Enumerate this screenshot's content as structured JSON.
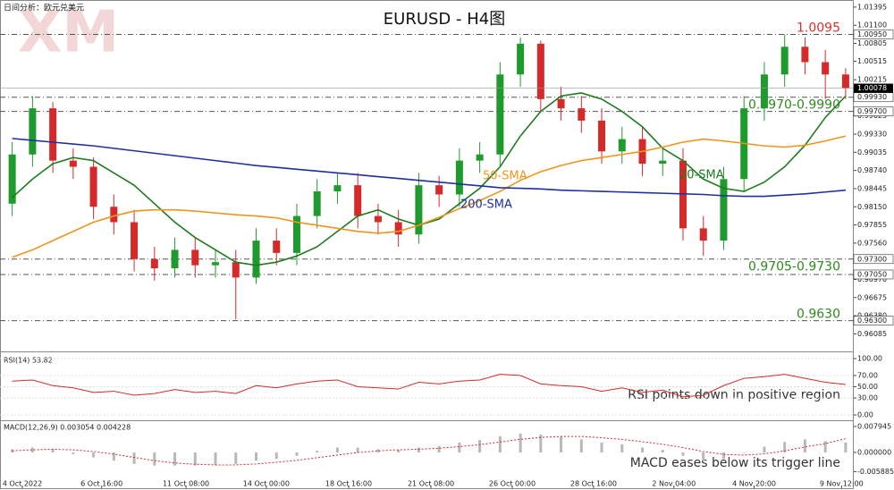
{
  "chart_data": [
    {
      "type": "candlestick",
      "title": "EURUSD - H4图",
      "subtitle": "日间分析：欧元兑美元",
      "watermark": "XM",
      "open": [
        0.982,
        0.99,
        0.9975,
        0.989,
        0.988,
        0.9815,
        0.979,
        0.973,
        0.9715,
        0.9745,
        0.972,
        0.9725,
        0.97,
        0.976,
        0.974,
        0.98,
        0.984,
        0.985,
        0.98,
        0.979,
        0.977,
        0.985,
        0.9835,
        0.989,
        0.99,
        1.003,
        1.008,
        0.999,
        0.9975,
        0.9955,
        0.9905,
        0.9925,
        0.9885,
        0.989,
        0.978,
        0.976,
        0.986,
        0.9975,
        1.003,
        1.0075,
        1.005,
        1.003
      ],
      "high": [
        0.992,
        0.9995,
        0.9985,
        0.991,
        0.9895,
        0.9835,
        0.981,
        0.975,
        0.9765,
        0.9765,
        0.9745,
        0.9745,
        0.978,
        0.978,
        0.982,
        0.986,
        0.987,
        0.987,
        0.982,
        0.981,
        0.987,
        0.9865,
        0.991,
        0.992,
        1.005,
        1.009,
        1.0085,
        1.001,
        0.9995,
        0.9975,
        0.9945,
        0.9945,
        0.991,
        0.991,
        0.98,
        0.988,
        0.9995,
        1.005,
        1.0095,
        1.009,
        1.007,
        1.004
      ],
      "low": [
        0.98,
        0.988,
        0.987,
        0.986,
        0.9795,
        0.977,
        0.971,
        0.9695,
        0.97,
        0.97,
        0.97,
        0.9632,
        0.969,
        0.972,
        0.972,
        0.978,
        0.982,
        0.978,
        0.977,
        0.975,
        0.9755,
        0.9815,
        0.9815,
        0.987,
        0.988,
        1.001,
        0.997,
        0.9955,
        0.9935,
        0.9885,
        0.9885,
        0.9865,
        0.9865,
        0.976,
        0.9735,
        0.9745,
        0.984,
        0.9955,
        1.001,
        1.003,
        0.999,
        0.999
      ],
      "close": [
        0.99,
        0.9975,
        0.989,
        0.988,
        0.9815,
        0.979,
        0.973,
        0.9715,
        0.9745,
        0.972,
        0.9725,
        0.97,
        0.976,
        0.974,
        0.98,
        0.984,
        0.985,
        0.98,
        0.979,
        0.977,
        0.985,
        0.9835,
        0.989,
        0.99,
        1.003,
        1.008,
        0.999,
        0.9975,
        0.9955,
        0.9905,
        0.9925,
        0.9885,
        0.989,
        0.978,
        0.976,
        0.986,
        0.9975,
        1.003,
        1.0075,
        1.005,
        1.003,
        1.00078
      ],
      "up_color": "#1f9a2c",
      "down_color": "#d42a2a",
      "series": [
        {
          "name": "20-SMA",
          "color": "#1e7b1e",
          "values": [
            0.983,
            0.986,
            0.9885,
            0.9895,
            0.989,
            0.987,
            0.985,
            0.982,
            0.979,
            0.9765,
            0.9745,
            0.9725,
            0.972,
            0.9725,
            0.9735,
            0.975,
            0.9775,
            0.98,
            0.981,
            0.9795,
            0.9785,
            0.9795,
            0.982,
            0.9845,
            0.988,
            0.993,
            0.997,
            0.9995,
            1.0,
            0.999,
            0.997,
            0.9945,
            0.991,
            0.989,
            0.986,
            0.9845,
            0.984,
            0.9855,
            0.988,
            0.9915,
            0.996,
            0.9995
          ]
        },
        {
          "name": "50-SMA",
          "color": "#f0951c",
          "values": [
            0.9733,
            0.9745,
            0.976,
            0.9775,
            0.979,
            0.98,
            0.9808,
            0.981,
            0.981,
            0.9808,
            0.9805,
            0.9802,
            0.98,
            0.9797,
            0.979,
            0.9785,
            0.978,
            0.9775,
            0.9772,
            0.9775,
            0.9785,
            0.9798,
            0.9812,
            0.9825,
            0.984,
            0.9858,
            0.9872,
            0.9882,
            0.989,
            0.9895,
            0.99,
            0.9905,
            0.9912,
            0.992,
            0.9925,
            0.9922,
            0.9918,
            0.9914,
            0.9912,
            0.9915,
            0.9922,
            0.993
          ]
        },
        {
          "name": "200-SMA",
          "color": "#1f2fa0",
          "values": [
            0.9926,
            0.9923,
            0.992,
            0.9917,
            0.9914,
            0.991,
            0.9906,
            0.9902,
            0.9898,
            0.9894,
            0.989,
            0.9886,
            0.9882,
            0.9879,
            0.9876,
            0.9873,
            0.987,
            0.9867,
            0.9864,
            0.9861,
            0.9858,
            0.9855,
            0.9852,
            0.9849,
            0.9846,
            0.9845,
            0.9844,
            0.9842,
            0.9841,
            0.984,
            0.9839,
            0.9838,
            0.9837,
            0.9836,
            0.9835,
            0.9833,
            0.9832,
            0.9832,
            0.9834,
            0.9836,
            0.9839,
            0.9842
          ]
        }
      ],
      "xlim": [
        -0.6,
        41.4
      ],
      "ylim": [
        0.958,
        1.0151
      ],
      "yticks": [
        {
          "value": 1.01395,
          "label": "1.01395"
        },
        {
          "value": 1.011,
          "label": "1.01100"
        },
        {
          "value": 1.00805,
          "label": "1.00805"
        },
        {
          "value": 1.00515,
          "label": "1.00515"
        },
        {
          "value": 1.00215,
          "label": "1.00215"
        },
        {
          "value": 0.99625,
          "label": "0.99625"
        },
        {
          "value": 0.9933,
          "label": "0.99330"
        },
        {
          "value": 0.99035,
          "label": "0.99035"
        },
        {
          "value": 0.9874,
          "label": "0.98740"
        },
        {
          "value": 0.98445,
          "label": "0.98445"
        },
        {
          "value": 0.9815,
          "label": "0.98150"
        },
        {
          "value": 0.97855,
          "label": "0.97855"
        },
        {
          "value": 0.9756,
          "label": "0.97560"
        },
        {
          "value": 0.97265,
          "label": "0.97265"
        },
        {
          "value": 0.9697,
          "label": "0.96970"
        },
        {
          "value": 0.96675,
          "label": "0.96675"
        },
        {
          "value": 0.9638,
          "label": "0.96380"
        },
        {
          "value": 0.96085,
          "label": "0.96085"
        }
      ],
      "levels": [
        {
          "value": 1.0095,
          "label": "1.00950"
        },
        {
          "value": 0.9993,
          "label": "0.99930"
        },
        {
          "value": 0.997,
          "label": "0.99700"
        },
        {
          "value": 0.973,
          "label": "0.97300"
        },
        {
          "value": 0.9705,
          "label": "0.97050"
        },
        {
          "value": 0.963,
          "label": "0.96300"
        }
      ],
      "last_price": {
        "value": 1.00078,
        "label": "1.00078"
      },
      "annotations": [
        {
          "text": "1.0095",
          "values": [
            1.0095
          ],
          "color": "#e0302a"
        },
        {
          "text": "0.9970-0.9990",
          "values": [
            0.997,
            0.999
          ],
          "color": "#2e8a1e"
        },
        {
          "text": "0.9705-0.9730",
          "values": [
            0.9705,
            0.973
          ],
          "color": "#2e8a1e"
        },
        {
          "text": "0.9630",
          "values": [
            0.963
          ],
          "color": "#2e8a1e"
        }
      ]
    },
    {
      "type": "line",
      "label": "RSI(14) 53.82",
      "annotation": "RSI points down in positive region",
      "color": "#d42a2a",
      "values": [
        60,
        62,
        52,
        48,
        40,
        42,
        35,
        38,
        45,
        40,
        42,
        38,
        52,
        48,
        55,
        60,
        62,
        50,
        48,
        46,
        58,
        55,
        60,
        62,
        72,
        70,
        55,
        52,
        50,
        42,
        48,
        40,
        44,
        32,
        35,
        52,
        65,
        68,
        72,
        65,
        58,
        54
      ],
      "xlim": [
        -0.6,
        41.4
      ],
      "ylim": [
        -9.5,
        108
      ],
      "yticks": [
        {
          "value": 0,
          "label": "0.00"
        },
        {
          "value": 30,
          "label": "30.00"
        },
        {
          "value": 50,
          "label": "50.00"
        },
        {
          "value": 70,
          "label": "70.00"
        },
        {
          "value": 100,
          "label": "100.00"
        }
      ]
    },
    {
      "type": "macd",
      "label": "MACD(12,26,9) 0.003054 0.004228",
      "annotation": "MACD eases below its trigger line",
      "series": [
        {
          "name": "MACD",
          "color": "#b8b8b8",
          "values": [
            0.001,
            0.0015,
            0.001,
            -0.0005,
            -0.0015,
            -0.0025,
            -0.0035,
            -0.004,
            -0.004,
            -0.004,
            -0.0038,
            -0.0035,
            -0.0025,
            -0.002,
            -0.001,
            0.0005,
            0.0015,
            0.0015,
            0.001,
            0.0008,
            0.0015,
            0.002,
            0.003,
            0.0038,
            0.005,
            0.0058,
            0.0055,
            0.0048,
            0.004,
            0.003,
            0.0025,
            0.0015,
            0.0008,
            -0.001,
            -0.0025,
            -0.002,
            0,
            0.0018,
            0.0032,
            0.004,
            0.0035,
            0.003054
          ]
        },
        {
          "name": "Signal",
          "color": "#d42a2a",
          "values": [
            0.0005,
            0.0008,
            0.001,
            0.0008,
            0.0003,
            -0.0005,
            -0.0015,
            -0.0025,
            -0.0032,
            -0.0036,
            -0.0038,
            -0.0038,
            -0.0035,
            -0.003,
            -0.0024,
            -0.0016,
            -0.0008,
            0,
            0.0005,
            0.0008,
            0.001,
            0.0013,
            0.0018,
            0.0024,
            0.0032,
            0.004,
            0.0046,
            0.0049,
            0.0049,
            0.0045,
            0.004,
            0.0033,
            0.0025,
            0.0015,
            0.0003,
            -0.0006,
            -0.0008,
            -0.0004,
            0.0005,
            0.0017,
            0.0027,
            0.004228
          ]
        }
      ],
      "xlim": [
        -0.6,
        41.4
      ],
      "ylim": [
        -0.0101,
        0.0093
      ],
      "yticks": [
        {
          "value": 0.007945,
          "label": "0.007945"
        },
        {
          "value": 0,
          "label": "0.000000"
        },
        {
          "value": -0.005885,
          "label": "-0.005885"
        }
      ],
      "xticks": [
        {
          "value": 0.5,
          "label": "4 Oct 2022"
        },
        {
          "value": 4.4,
          "label": "6 Oct 16:00"
        },
        {
          "value": 8.55,
          "label": "11 Oct 08:00"
        },
        {
          "value": 12.5,
          "label": "14 Oct 00:00"
        },
        {
          "value": 16.55,
          "label": "18 Oct 16:00"
        },
        {
          "value": 20.6,
          "label": "21 Oct 08:00"
        },
        {
          "value": 24.6,
          "label": "26 Oct 00:00"
        },
        {
          "value": 28.6,
          "label": "28 Oct 16:00"
        },
        {
          "value": 32.55,
          "label": "2 Nov 04:00"
        },
        {
          "value": 36.5,
          "label": "4 Nov 20:00"
        },
        {
          "value": 40.8,
          "label": "9 Nov 12:00"
        }
      ]
    }
  ]
}
